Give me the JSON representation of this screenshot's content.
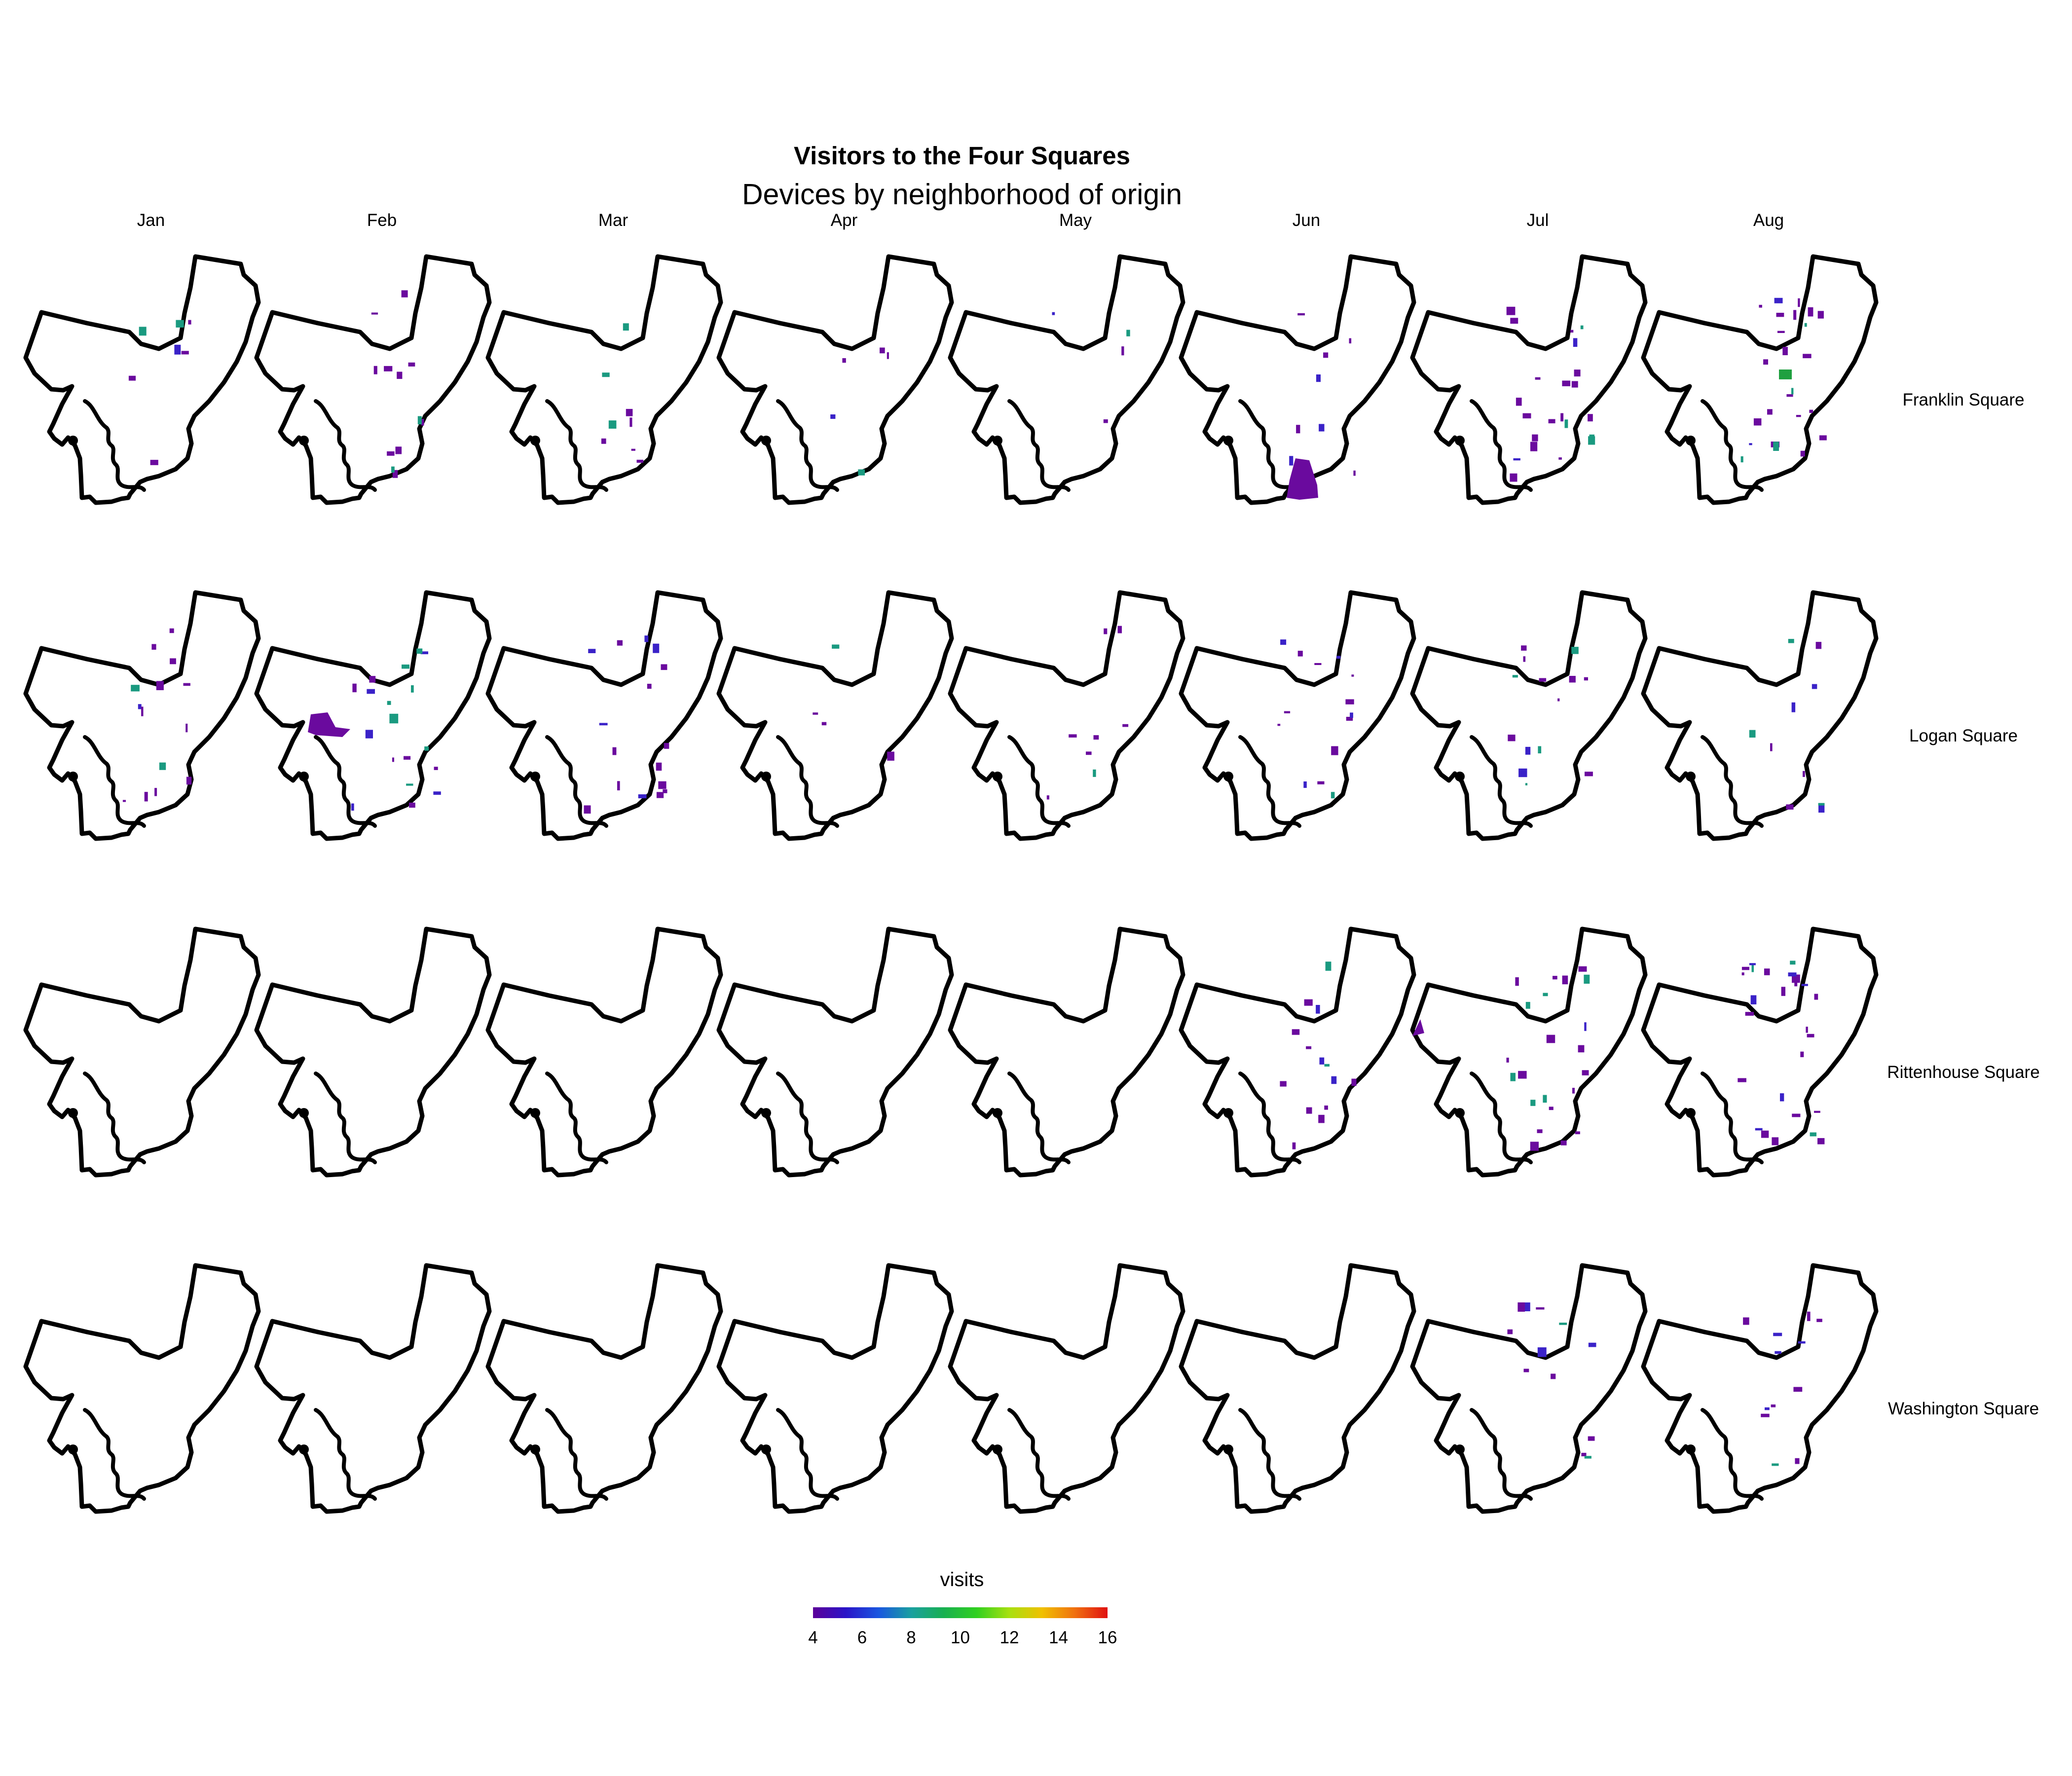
{
  "title": "Visitors to the Four Squares",
  "subtitle": "Devices by neighborhood of origin",
  "months": [
    "Jan",
    "Feb",
    "Mar",
    "Apr",
    "May",
    "Jun",
    "Jul",
    "Aug"
  ],
  "squares": [
    "Franklin Square",
    "Logan Square",
    "Rittenhouse Square",
    "Washington Square"
  ],
  "legend": {
    "title": "visits",
    "ticks": [
      "4",
      "6",
      "8",
      "10",
      "12",
      "14",
      "16"
    ],
    "min": 4,
    "max": 16,
    "colors": [
      "#5c0099",
      "#2a14c8",
      "#1a56e0",
      "#1aa0a0",
      "#18b050",
      "#30d020",
      "#a8e010",
      "#f0c000",
      "#f07010",
      "#e01010"
    ]
  },
  "colors": {
    "outline": "#000000",
    "low_visits": "#6a0a9e",
    "mid_low_visits": "#3a22c8",
    "mid_visits": "#1a9a80",
    "high_visits": "#20a040"
  },
  "chart_data": {
    "type": "heatmap",
    "rows": [
      "Franklin Square",
      "Logan Square",
      "Rittenhouse Square",
      "Washington Square"
    ],
    "columns": [
      "Jan",
      "Feb",
      "Mar",
      "Apr",
      "May",
      "Jun",
      "Jul",
      "Aug"
    ],
    "value_name": "visits",
    "value_range": [
      4,
      16
    ]
  }
}
